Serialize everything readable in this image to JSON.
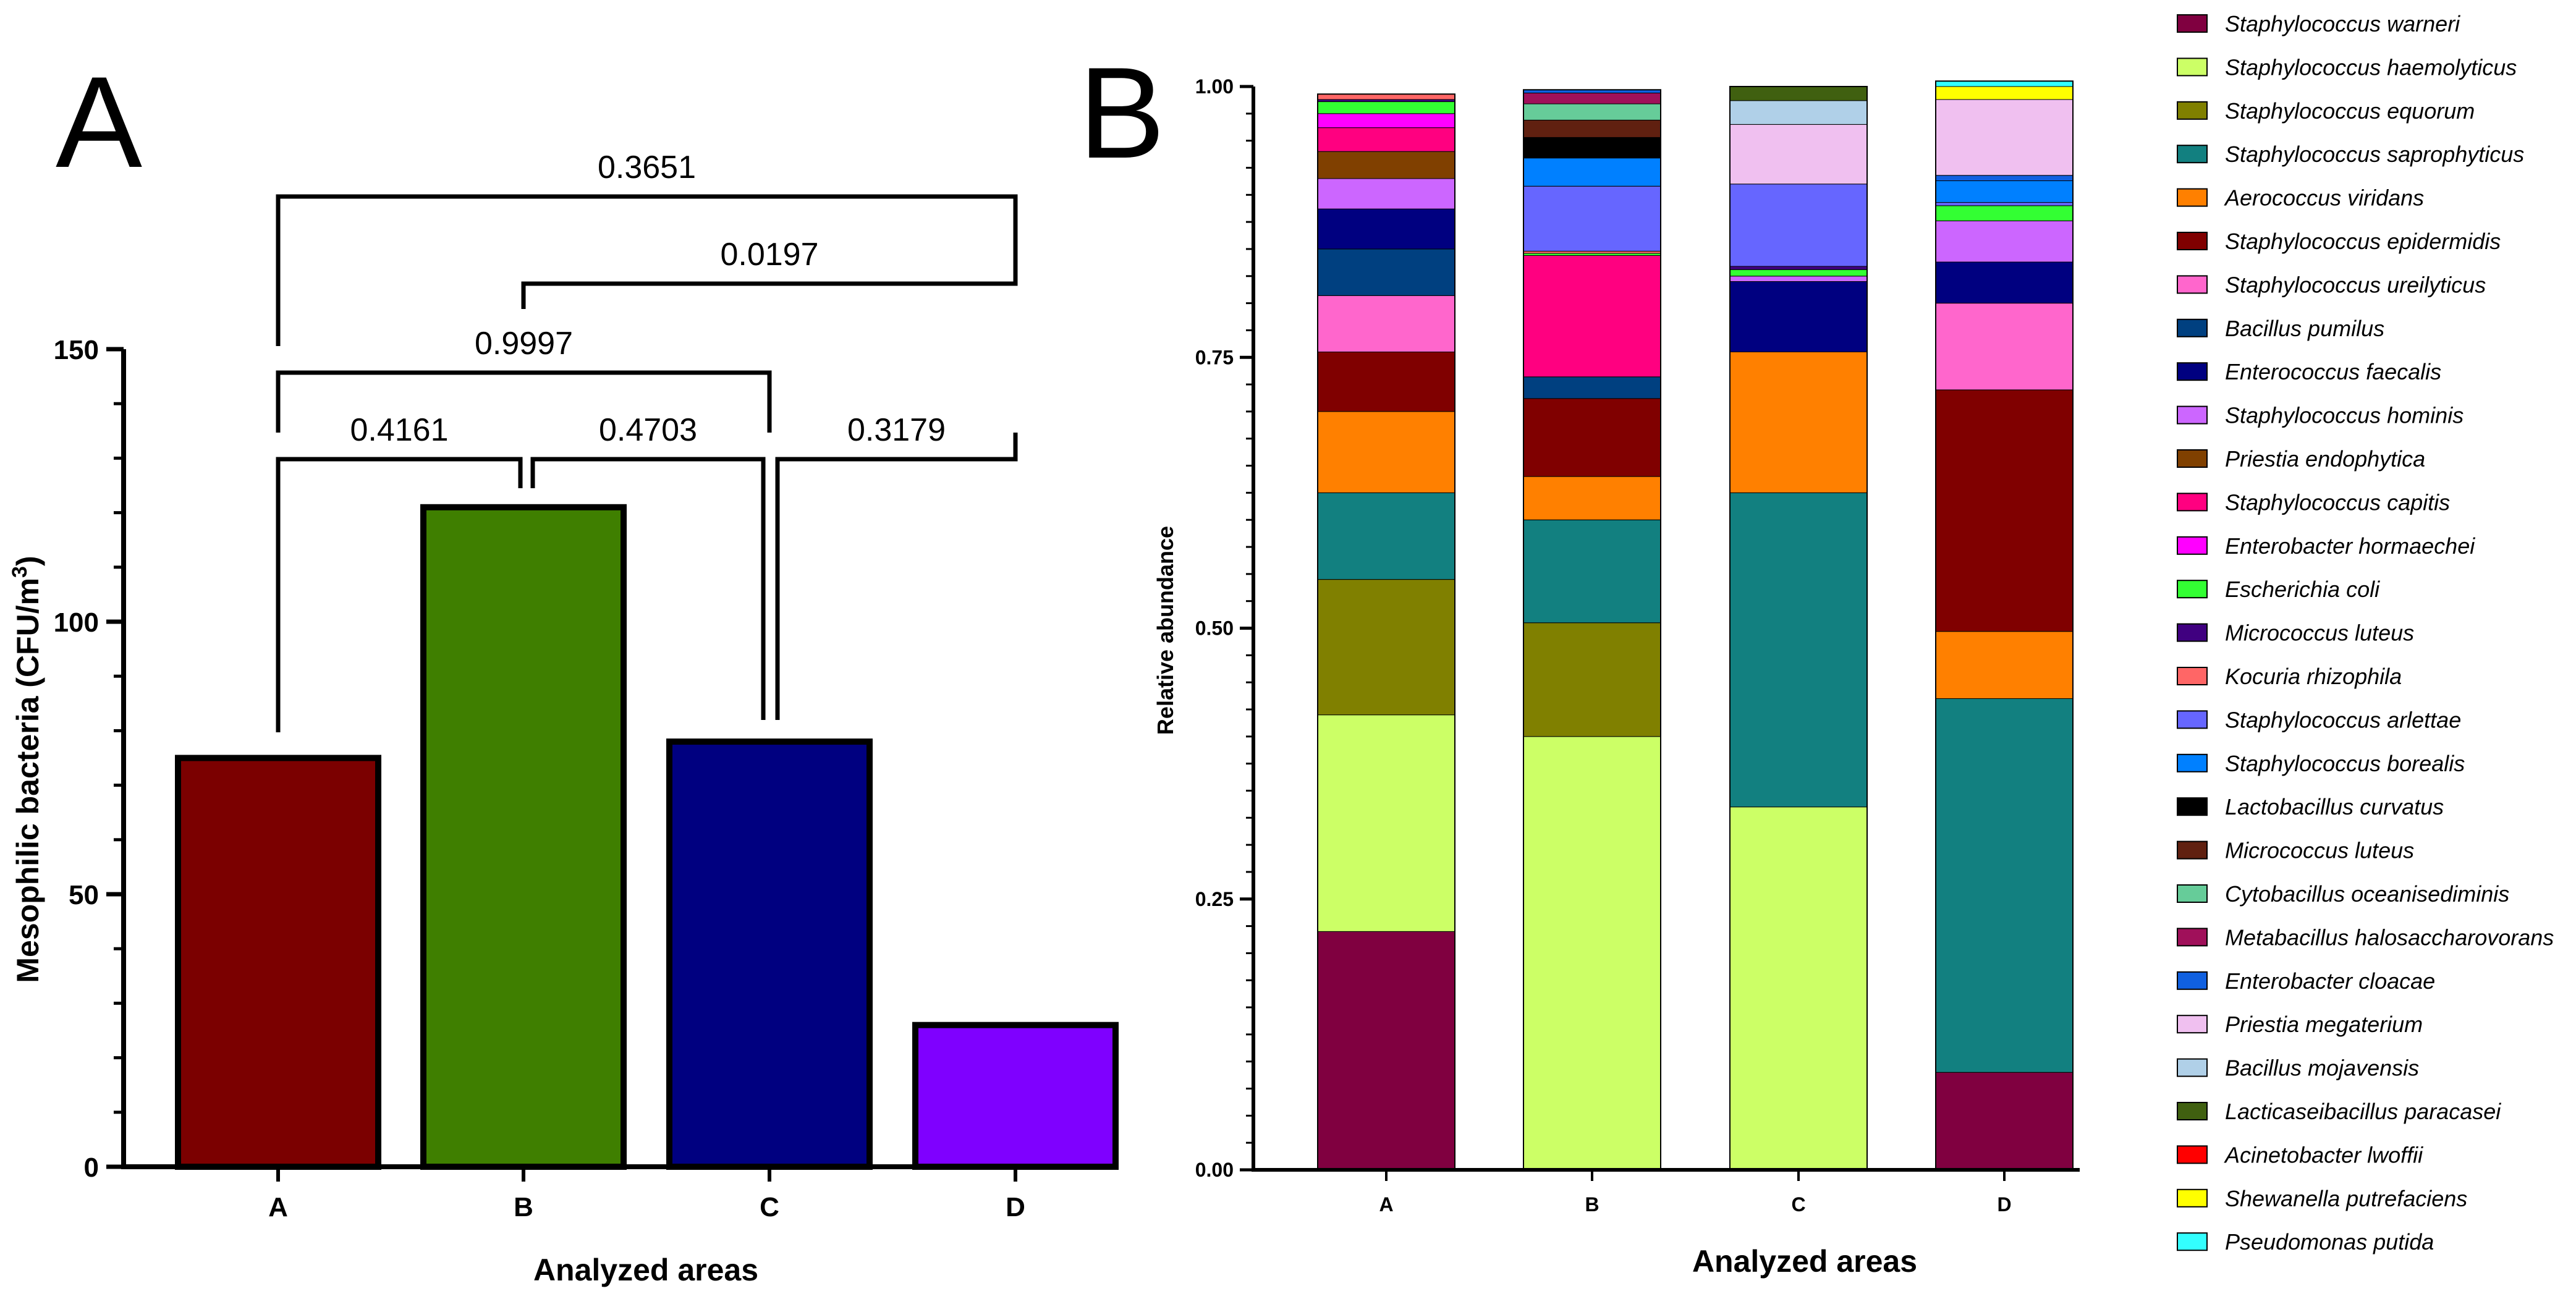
{
  "chart_data": [
    {
      "panel": "A",
      "type": "bar",
      "categories": [
        "A",
        "B",
        "C",
        "D"
      ],
      "values": [
        75,
        121,
        78,
        26
      ],
      "colors": [
        "#7b0000",
        "#3f7f00",
        "#000080",
        "#7f00ff"
      ],
      "xlabel": "Analyzed areas",
      "ylabel": "Mesophilic bacteria (CFU/m³)",
      "ylim": [
        0,
        150
      ],
      "yticks": [
        "0",
        "50",
        "100",
        "150"
      ],
      "comparisons": [
        {
          "pair": [
            "A",
            "B"
          ],
          "p": "0.4161"
        },
        {
          "pair": [
            "B",
            "C"
          ],
          "p": "0.4703"
        },
        {
          "pair": [
            "C",
            "D"
          ],
          "p": "0.3179"
        },
        {
          "pair": [
            "A",
            "C"
          ],
          "p": "0.9997"
        },
        {
          "pair": [
            "B",
            "D"
          ],
          "p": "0.0197"
        },
        {
          "pair": [
            "A",
            "D"
          ],
          "p": "0.3651"
        }
      ]
    },
    {
      "panel": "B",
      "type": "stacked-bar",
      "categories": [
        "A",
        "B",
        "C",
        "D"
      ],
      "xlabel": "Analyzed areas",
      "ylabel": "Relative abundance",
      "ylim": [
        0,
        1
      ],
      "yticks": [
        "0.00",
        "0.25",
        "0.50",
        "0.75",
        "1.00"
      ],
      "series": [
        {
          "name": "Staphylococcus warneri",
          "color": "#800040",
          "values": [
            0.22,
            0,
            0,
            0.09
          ]
        },
        {
          "name": "Staphylococcus haemolyticus",
          "color": "#ccff66",
          "values": [
            0.2,
            0.4,
            0.335,
            0
          ]
        },
        {
          "name": "Staphylococcus equorum",
          "color": "#808000",
          "values": [
            0.125,
            0.105,
            0,
            0
          ]
        },
        {
          "name": "Staphylococcus saprophyticus",
          "color": "#128080",
          "values": [
            0.08,
            0.095,
            0.29,
            0.345
          ]
        },
        {
          "name": "Aerococcus viridans",
          "color": "#ff8000",
          "values": [
            0.075,
            0.04,
            0.13,
            0.062
          ]
        },
        {
          "name": "Staphylococcus epidermidis",
          "color": "#800000",
          "values": [
            0.055,
            0.072,
            0,
            0.223
          ]
        },
        {
          "name": "Staphylococcus ureilyticus",
          "color": "#ff66cc",
          "values": [
            0.052,
            0,
            0,
            0.08
          ]
        },
        {
          "name": "Bacillus pumilus",
          "color": "#004080",
          "values": [
            0.043,
            0.02,
            0,
            0
          ]
        },
        {
          "name": "Enterococcus faecalis",
          "color": "#000080",
          "values": [
            0.037,
            0,
            0.065,
            0.038
          ]
        },
        {
          "name": "Staphylococcus hominis",
          "color": "#cc66ff",
          "values": [
            0.028,
            0,
            0.005,
            0.038
          ]
        },
        {
          "name": "Priestia endophytica",
          "color": "#804000",
          "values": [
            0.025,
            0,
            0,
            0
          ]
        },
        {
          "name": "Staphylococcus capitis",
          "color": "#ff0080",
          "values": [
            0.022,
            0.112,
            0,
            0
          ]
        },
        {
          "name": "Enterobacter hormaechei",
          "color": "#ff00ff",
          "values": [
            0.013,
            0,
            0,
            0
          ]
        },
        {
          "name": "Escherichia coli",
          "color": "#33ff33",
          "values": [
            0.011,
            0.002,
            0.006,
            0.014
          ]
        },
        {
          "name": "Micrococcus luteus",
          "color": "#400080",
          "values": [
            0.002,
            0,
            0.003,
            0
          ]
        },
        {
          "name": "Kocuria rhizophila",
          "color": "#ff6666",
          "values": [
            0.005,
            0.002,
            0,
            0
          ]
        },
        {
          "name": "Staphylococcus arlettae",
          "color": "#6666ff",
          "values": [
            0,
            0.06,
            0.076,
            0.003
          ]
        },
        {
          "name": "Staphylococcus borealis",
          "color": "#0080ff",
          "values": [
            0,
            0.026,
            0,
            0.02
          ]
        },
        {
          "name": "Lactobacillus curvatus",
          "color": "#000000",
          "values": [
            0,
            0.019,
            0,
            0
          ]
        },
        {
          "name": "Micrococcus luteus",
          "color": "#602010",
          "values": [
            0,
            0.016,
            0,
            0
          ]
        },
        {
          "name": "Cytobacillus oceanisediminis",
          "color": "#66cc99",
          "values": [
            0,
            0.015,
            0,
            0
          ]
        },
        {
          "name": "Metabacillus halosaccharovorans",
          "color": "#a0105a",
          "values": [
            0,
            0.01,
            0,
            0
          ]
        },
        {
          "name": "Enterobacter cloacae",
          "color": "#1060e0",
          "values": [
            0,
            0.003,
            0,
            0.005
          ]
        },
        {
          "name": "Priestia megaterium",
          "color": "#f0c0f0",
          "values": [
            0,
            0,
            0.055,
            0.07
          ]
        },
        {
          "name": "Bacillus mojavensis",
          "color": "#b0d0e8",
          "values": [
            0,
            0,
            0.022,
            0
          ]
        },
        {
          "name": "Lacticaseibacillus paracasei",
          "color": "#406010",
          "values": [
            0,
            0,
            0.013,
            0
          ]
        },
        {
          "name": "Acinetobacter lwoffii",
          "color": "#ff0000",
          "values": [
            0,
            0,
            0,
            0
          ]
        },
        {
          "name": "Shewanella putrefaciens",
          "color": "#ffff00",
          "values": [
            0,
            0,
            0,
            0.012
          ]
        },
        {
          "name": "Pseudomonas putida",
          "color": "#33ffff",
          "values": [
            0,
            0,
            0,
            0.005
          ]
        }
      ]
    }
  ]
}
